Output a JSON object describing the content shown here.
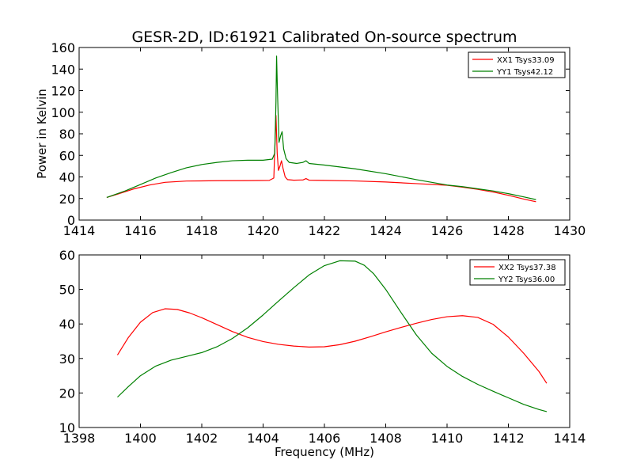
{
  "title": "GESR-2D, ID:61921 Calibrated On-source spectrum",
  "colors": {
    "xx": "#ff0000",
    "yy": "#008000"
  },
  "chart_data": [
    {
      "type": "line",
      "title": "GESR-2D, ID:61921 Calibrated On-source spectrum",
      "xlabel": "",
      "ylabel": "Power in Kelvin",
      "xlim": [
        1414,
        1430
      ],
      "ylim": [
        0,
        160
      ],
      "xticks": [
        1414,
        1416,
        1418,
        1420,
        1422,
        1424,
        1426,
        1428,
        1430
      ],
      "yticks": [
        0,
        20,
        40,
        60,
        80,
        100,
        120,
        140,
        160
      ],
      "grid": false,
      "legend": "top-right",
      "series": [
        {
          "name": "XX1 Tsys33.09",
          "color": "#ff0000",
          "x": [
            1414.9,
            1415.3,
            1415.8,
            1416.3,
            1416.8,
            1417.5,
            1418.5,
            1419.5,
            1420.2,
            1420.35,
            1420.42,
            1420.46,
            1420.5,
            1420.55,
            1420.6,
            1420.65,
            1420.72,
            1420.8,
            1421.0,
            1421.3,
            1421.4,
            1421.5,
            1422.0,
            1423.0,
            1424.0,
            1425.0,
            1426.0,
            1426.5,
            1427.0,
            1427.5,
            1428.0,
            1428.5,
            1428.9
          ],
          "y": [
            21,
            24.5,
            29,
            32.5,
            35,
            36.2,
            36.5,
            36.6,
            36.8,
            39,
            97,
            62,
            46,
            50,
            55,
            48,
            40,
            37.5,
            37,
            37.2,
            38.5,
            37,
            36.8,
            36.3,
            35.3,
            33.8,
            32.3,
            30.5,
            28.5,
            26,
            23,
            19.5,
            17
          ]
        },
        {
          "name": "YY1 Tsys42.12",
          "color": "#008000",
          "x": [
            1414.9,
            1415.5,
            1416.0,
            1416.5,
            1417.0,
            1417.5,
            1418.0,
            1418.5,
            1419.0,
            1419.5,
            1420.0,
            1420.3,
            1420.38,
            1420.42,
            1420.44,
            1420.47,
            1420.52,
            1420.57,
            1420.62,
            1420.67,
            1420.75,
            1420.85,
            1421.1,
            1421.3,
            1421.4,
            1421.5,
            1422.0,
            1423.0,
            1424.0,
            1425.0,
            1426.0,
            1426.5,
            1427.0,
            1427.5,
            1428.0,
            1428.5,
            1428.9
          ],
          "y": [
            21,
            27,
            33,
            39,
            44,
            48.5,
            51.5,
            53.5,
            55,
            55.5,
            55.5,
            56.5,
            62,
            110,
            152,
            118,
            72,
            78,
            82,
            66,
            57,
            53.5,
            52.5,
            53.5,
            55,
            52.5,
            51,
            47.5,
            43,
            37.5,
            32.5,
            31,
            29,
            27,
            24.5,
            21.5,
            19
          ]
        }
      ]
    },
    {
      "type": "line",
      "title": "",
      "xlabel": "Frequency (MHz)",
      "ylabel": "",
      "xlim": [
        1398,
        1414
      ],
      "ylim": [
        10,
        60
      ],
      "xticks": [
        1398,
        1400,
        1402,
        1404,
        1406,
        1408,
        1410,
        1412,
        1414
      ],
      "yticks": [
        10,
        20,
        30,
        40,
        50,
        60
      ],
      "grid": false,
      "legend": "top-right",
      "series": [
        {
          "name": "XX2 Tsys37.38",
          "color": "#ff0000",
          "x": [
            1399.25,
            1399.6,
            1400.0,
            1400.4,
            1400.8,
            1401.2,
            1401.6,
            1402.0,
            1402.5,
            1403.0,
            1403.5,
            1404.0,
            1404.5,
            1405.0,
            1405.5,
            1406.0,
            1406.5,
            1407.0,
            1407.5,
            1408.0,
            1408.5,
            1409.0,
            1409.5,
            1410.0,
            1410.5,
            1411.0,
            1411.5,
            1412.0,
            1412.5,
            1413.0,
            1413.25
          ],
          "y": [
            31,
            36,
            40.5,
            43.3,
            44.4,
            44.2,
            43.2,
            41.8,
            39.8,
            37.8,
            36.1,
            34.9,
            34.1,
            33.6,
            33.3,
            33.4,
            34.0,
            35.0,
            36.3,
            37.7,
            39.0,
            40.2,
            41.3,
            42.1,
            42.4,
            41.9,
            39.9,
            36.2,
            31.5,
            26.2,
            22.8
          ]
        },
        {
          "name": "YY2 Tsys36.00",
          "color": "#008000",
          "x": [
            1399.25,
            1399.6,
            1400.0,
            1400.5,
            1401.0,
            1401.5,
            1402.0,
            1402.5,
            1403.0,
            1403.5,
            1404.0,
            1404.5,
            1405.0,
            1405.5,
            1406.0,
            1406.5,
            1407.0,
            1407.3,
            1407.6,
            1408.0,
            1408.5,
            1409.0,
            1409.5,
            1410.0,
            1410.5,
            1411.0,
            1411.5,
            1412.0,
            1412.5,
            1413.0,
            1413.25
          ],
          "y": [
            18.8,
            21.8,
            25.0,
            27.8,
            29.5,
            30.6,
            31.7,
            33.4,
            35.8,
            38.9,
            42.6,
            46.6,
            50.5,
            54.2,
            56.9,
            58.3,
            58.2,
            57.0,
            54.6,
            50.0,
            43.3,
            36.8,
            31.5,
            27.7,
            24.8,
            22.5,
            20.5,
            18.6,
            16.7,
            15.2,
            14.6
          ]
        }
      ]
    }
  ]
}
